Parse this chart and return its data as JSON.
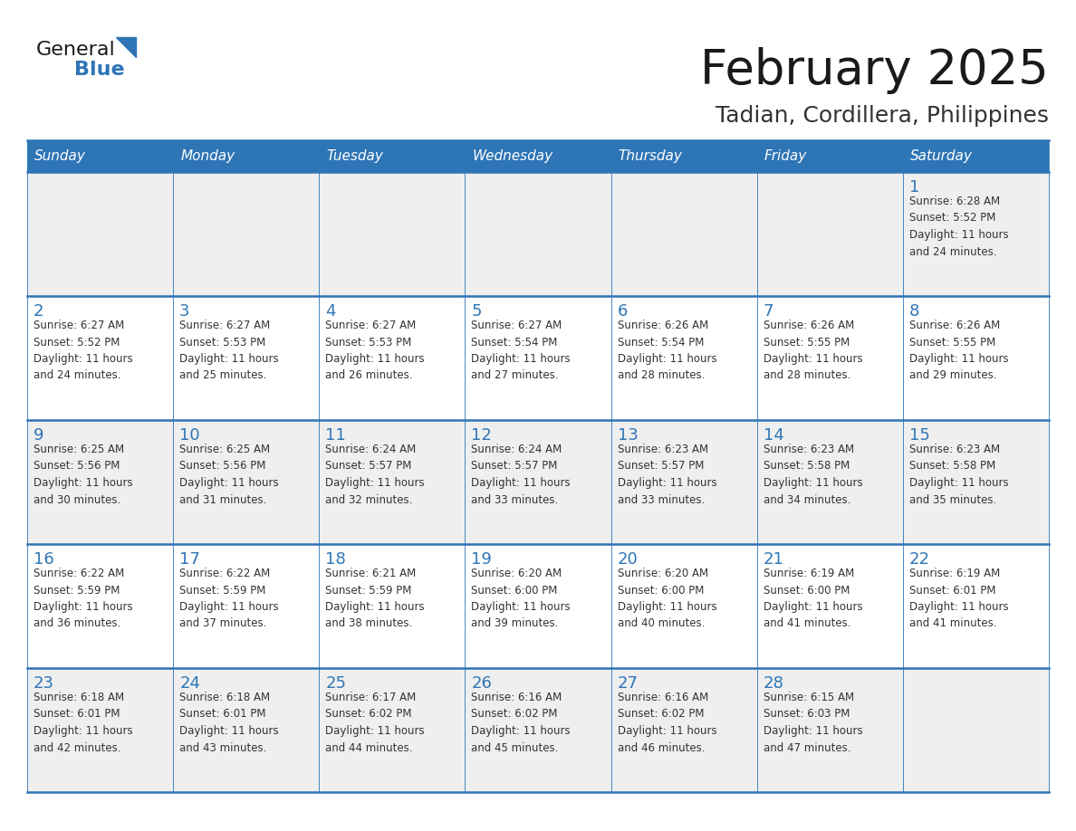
{
  "title": "February 2025",
  "subtitle": "Tadian, Cordillera, Philippines",
  "days_of_week": [
    "Sunday",
    "Monday",
    "Tuesday",
    "Wednesday",
    "Thursday",
    "Friday",
    "Saturday"
  ],
  "header_bg": "#2E75B6",
  "header_text": "#FFFFFF",
  "cell_bg_light": "#FFFFFF",
  "cell_bg_gray": "#EFEFEF",
  "grid_line_color": "#2E75B6",
  "day_number_color": "#2E75B6",
  "cell_text_color": "#333333",
  "title_color": "#1a1a1a",
  "subtitle_color": "#333333",
  "logo_general_color": "#1a1a1a",
  "logo_blue_color": "#2E75B6",
  "weeks": [
    {
      "days": [
        {
          "day": null,
          "info": null
        },
        {
          "day": null,
          "info": null
        },
        {
          "day": null,
          "info": null
        },
        {
          "day": null,
          "info": null
        },
        {
          "day": null,
          "info": null
        },
        {
          "day": null,
          "info": null
        },
        {
          "day": 1,
          "info": "Sunrise: 6:28 AM\nSunset: 5:52 PM\nDaylight: 11 hours\nand 24 minutes."
        }
      ]
    },
    {
      "days": [
        {
          "day": 2,
          "info": "Sunrise: 6:27 AM\nSunset: 5:52 PM\nDaylight: 11 hours\nand 24 minutes."
        },
        {
          "day": 3,
          "info": "Sunrise: 6:27 AM\nSunset: 5:53 PM\nDaylight: 11 hours\nand 25 minutes."
        },
        {
          "day": 4,
          "info": "Sunrise: 6:27 AM\nSunset: 5:53 PM\nDaylight: 11 hours\nand 26 minutes."
        },
        {
          "day": 5,
          "info": "Sunrise: 6:27 AM\nSunset: 5:54 PM\nDaylight: 11 hours\nand 27 minutes."
        },
        {
          "day": 6,
          "info": "Sunrise: 6:26 AM\nSunset: 5:54 PM\nDaylight: 11 hours\nand 28 minutes."
        },
        {
          "day": 7,
          "info": "Sunrise: 6:26 AM\nSunset: 5:55 PM\nDaylight: 11 hours\nand 28 minutes."
        },
        {
          "day": 8,
          "info": "Sunrise: 6:26 AM\nSunset: 5:55 PM\nDaylight: 11 hours\nand 29 minutes."
        }
      ]
    },
    {
      "days": [
        {
          "day": 9,
          "info": "Sunrise: 6:25 AM\nSunset: 5:56 PM\nDaylight: 11 hours\nand 30 minutes."
        },
        {
          "day": 10,
          "info": "Sunrise: 6:25 AM\nSunset: 5:56 PM\nDaylight: 11 hours\nand 31 minutes."
        },
        {
          "day": 11,
          "info": "Sunrise: 6:24 AM\nSunset: 5:57 PM\nDaylight: 11 hours\nand 32 minutes."
        },
        {
          "day": 12,
          "info": "Sunrise: 6:24 AM\nSunset: 5:57 PM\nDaylight: 11 hours\nand 33 minutes."
        },
        {
          "day": 13,
          "info": "Sunrise: 6:23 AM\nSunset: 5:57 PM\nDaylight: 11 hours\nand 33 minutes."
        },
        {
          "day": 14,
          "info": "Sunrise: 6:23 AM\nSunset: 5:58 PM\nDaylight: 11 hours\nand 34 minutes."
        },
        {
          "day": 15,
          "info": "Sunrise: 6:23 AM\nSunset: 5:58 PM\nDaylight: 11 hours\nand 35 minutes."
        }
      ]
    },
    {
      "days": [
        {
          "day": 16,
          "info": "Sunrise: 6:22 AM\nSunset: 5:59 PM\nDaylight: 11 hours\nand 36 minutes."
        },
        {
          "day": 17,
          "info": "Sunrise: 6:22 AM\nSunset: 5:59 PM\nDaylight: 11 hours\nand 37 minutes."
        },
        {
          "day": 18,
          "info": "Sunrise: 6:21 AM\nSunset: 5:59 PM\nDaylight: 11 hours\nand 38 minutes."
        },
        {
          "day": 19,
          "info": "Sunrise: 6:20 AM\nSunset: 6:00 PM\nDaylight: 11 hours\nand 39 minutes."
        },
        {
          "day": 20,
          "info": "Sunrise: 6:20 AM\nSunset: 6:00 PM\nDaylight: 11 hours\nand 40 minutes."
        },
        {
          "day": 21,
          "info": "Sunrise: 6:19 AM\nSunset: 6:00 PM\nDaylight: 11 hours\nand 41 minutes."
        },
        {
          "day": 22,
          "info": "Sunrise: 6:19 AM\nSunset: 6:01 PM\nDaylight: 11 hours\nand 41 minutes."
        }
      ]
    },
    {
      "days": [
        {
          "day": 23,
          "info": "Sunrise: 6:18 AM\nSunset: 6:01 PM\nDaylight: 11 hours\nand 42 minutes."
        },
        {
          "day": 24,
          "info": "Sunrise: 6:18 AM\nSunset: 6:01 PM\nDaylight: 11 hours\nand 43 minutes."
        },
        {
          "day": 25,
          "info": "Sunrise: 6:17 AM\nSunset: 6:02 PM\nDaylight: 11 hours\nand 44 minutes."
        },
        {
          "day": 26,
          "info": "Sunrise: 6:16 AM\nSunset: 6:02 PM\nDaylight: 11 hours\nand 45 minutes."
        },
        {
          "day": 27,
          "info": "Sunrise: 6:16 AM\nSunset: 6:02 PM\nDaylight: 11 hours\nand 46 minutes."
        },
        {
          "day": 28,
          "info": "Sunrise: 6:15 AM\nSunset: 6:03 PM\nDaylight: 11 hours\nand 47 minutes."
        },
        {
          "day": null,
          "info": null
        }
      ]
    }
  ]
}
